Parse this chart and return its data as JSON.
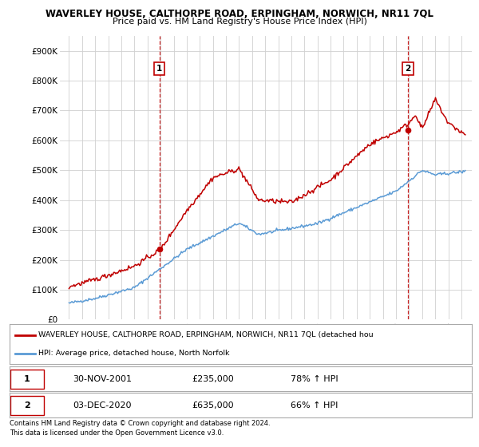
{
  "title": "WAVERLEY HOUSE, CALTHORPE ROAD, ERPINGHAM, NORWICH, NR11 7QL",
  "subtitle": "Price paid vs. HM Land Registry's House Price Index (HPI)",
  "ylim": [
    0,
    950000
  ],
  "yticks": [
    0,
    100000,
    200000,
    300000,
    400000,
    500000,
    600000,
    700000,
    800000,
    900000
  ],
  "ytick_labels": [
    "£0",
    "£100K",
    "£200K",
    "£300K",
    "£400K",
    "£500K",
    "£600K",
    "£700K",
    "£800K",
    "£900K"
  ],
  "sale1_year": 2001.917,
  "sale1_price": 235000,
  "sale2_year": 2020.917,
  "sale2_price": 635000,
  "hpi_color": "#5b9bd5",
  "price_color": "#c00000",
  "vline_color": "#c00000",
  "grid_color": "#d0d0d0",
  "legend_label_price": "WAVERLEY HOUSE, CALTHORPE ROAD, ERPINGHAM, NORWICH, NR11 7QL (detached hou",
  "legend_label_hpi": "HPI: Average price, detached house, North Norfolk",
  "footer1": "Contains HM Land Registry data © Crown copyright and database right 2024.",
  "footer2": "This data is licensed under the Open Government Licence v3.0.",
  "table_rows": [
    {
      "num": "1",
      "date": "30-NOV-2001",
      "price": "£235,000",
      "hpi": "78% ↑ HPI"
    },
    {
      "num": "2",
      "date": "03-DEC-2020",
      "price": "£635,000",
      "hpi": "66% ↑ HPI"
    }
  ]
}
